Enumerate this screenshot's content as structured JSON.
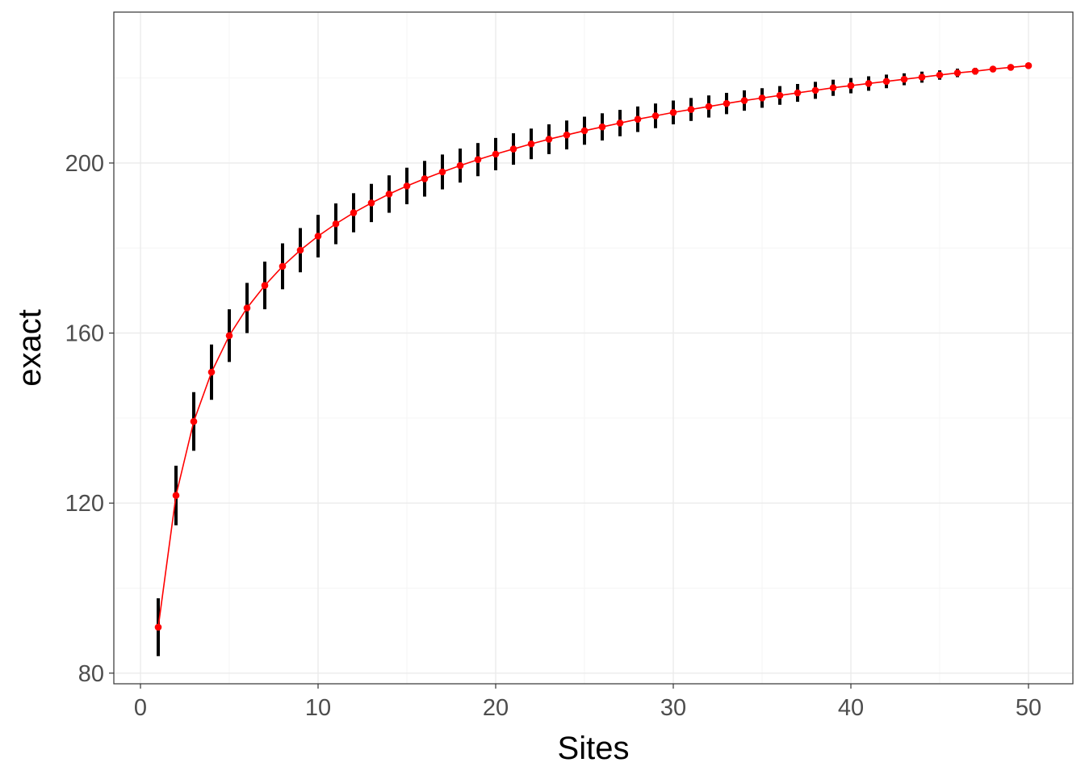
{
  "chart_data": {
    "type": "line",
    "title": "",
    "xlabel": "Sites",
    "ylabel": "exact",
    "xlim": [
      -1.5,
      52.5
    ],
    "ylim": [
      77.5,
      235.5
    ],
    "x_ticks": [
      0,
      10,
      20,
      30,
      40,
      50
    ],
    "x_tick_labels": [
      "0",
      "10",
      "20",
      "30",
      "40",
      "50"
    ],
    "y_ticks": [
      80,
      120,
      160,
      200
    ],
    "y_tick_labels": [
      "80",
      "120",
      "160",
      "200"
    ],
    "grid": true,
    "legend": "none",
    "series": [
      {
        "x": [
          1,
          2,
          3,
          4,
          5,
          6,
          7,
          8,
          9,
          10,
          11,
          12,
          13,
          14,
          15,
          16,
          17,
          18,
          19,
          20,
          21,
          22,
          23,
          24,
          25,
          26,
          27,
          28,
          29,
          30,
          31,
          32,
          33,
          34,
          35,
          36,
          37,
          38,
          39,
          40,
          41,
          42,
          43,
          44,
          45,
          46,
          47,
          48,
          49,
          50
        ],
        "y": [
          90.8,
          121.8,
          139.2,
          150.8,
          159.4,
          165.9,
          171.2,
          175.7,
          179.5,
          182.8,
          185.7,
          188.3,
          190.6,
          192.7,
          194.6,
          196.3,
          197.9,
          199.4,
          200.8,
          202.1,
          203.3,
          204.5,
          205.6,
          206.6,
          207.6,
          208.5,
          209.4,
          210.3,
          211.1,
          211.9,
          212.6,
          213.3,
          214.0,
          214.7,
          215.3,
          215.9,
          216.5,
          217.1,
          217.7,
          218.2,
          218.7,
          219.2,
          219.7,
          220.2,
          220.7,
          221.2,
          221.6,
          222.1,
          222.5,
          222.9
        ],
        "error": [
          6.8,
          7.0,
          6.9,
          6.5,
          6.2,
          5.9,
          5.6,
          5.4,
          5.2,
          5.0,
          4.8,
          4.6,
          4.5,
          4.4,
          4.3,
          4.2,
          4.1,
          4.0,
          3.9,
          3.8,
          3.7,
          3.6,
          3.5,
          3.4,
          3.3,
          3.2,
          3.1,
          3.0,
          2.9,
          2.8,
          2.7,
          2.6,
          2.5,
          2.4,
          2.3,
          2.2,
          2.1,
          2.0,
          1.9,
          1.8,
          1.7,
          1.6,
          1.4,
          1.3,
          1.1,
          1.0,
          0.8,
          0.6,
          0.4,
          0.1
        ],
        "line_color": "#ff0000",
        "point_color": "#ff0000",
        "errorbar_color": "#000000"
      }
    ]
  },
  "colors": {
    "background": "#ffffff",
    "panel_border": "#333333",
    "grid_major": "#ebebeb",
    "grid_minor": "#f5f5f5",
    "tick_label": "#4d4d4d"
  }
}
